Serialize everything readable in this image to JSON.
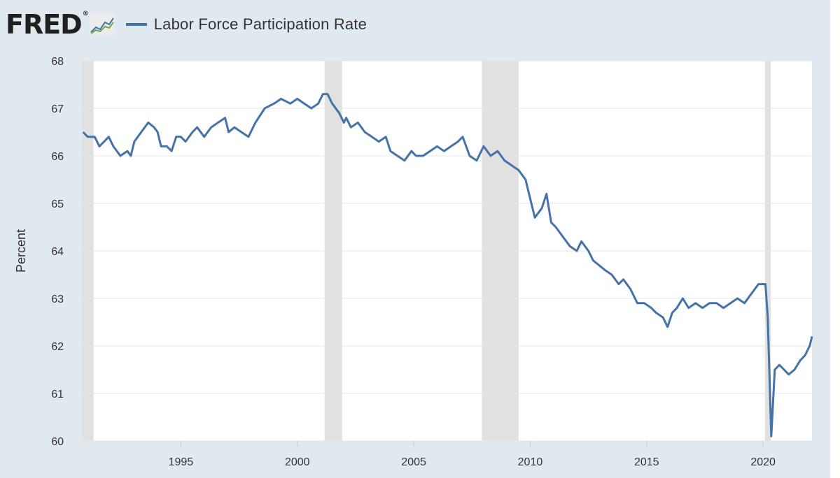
{
  "header": {
    "logo_text": "FRED",
    "logo_mark": "®",
    "logo_icon": "chart-line-icon"
  },
  "colors": {
    "series": "#4572a7",
    "background": "#e1e9f0",
    "plot": "#ffffff",
    "recession": "#e1e1e1",
    "grid": "#e6e6e6"
  },
  "chart_data": {
    "type": "line",
    "title": "",
    "xlabel": "",
    "ylabel": "Percent",
    "ylim": [
      60,
      68
    ],
    "xlim": [
      1990.75,
      2022.1
    ],
    "grid": true,
    "legend_position": "top-left",
    "yticks": [
      60,
      61,
      62,
      63,
      64,
      65,
      66,
      67,
      68
    ],
    "xticks": [
      1995,
      2000,
      2005,
      2010,
      2015,
      2020
    ],
    "recessions": [
      [
        1990.58,
        1991.25
      ],
      [
        2001.17,
        2001.92
      ],
      [
        2007.92,
        2009.5
      ],
      [
        2020.08,
        2020.33
      ]
    ],
    "series": [
      {
        "name": "Labor Force Participation Rate",
        "points": [
          [
            1990.8,
            66.5
          ],
          [
            1991.0,
            66.4
          ],
          [
            1991.3,
            66.4
          ],
          [
            1991.5,
            66.2
          ],
          [
            1991.9,
            66.4
          ],
          [
            1992.1,
            66.2
          ],
          [
            1992.4,
            66.0
          ],
          [
            1992.7,
            66.1
          ],
          [
            1992.85,
            66.0
          ],
          [
            1993.0,
            66.3
          ],
          [
            1993.3,
            66.5
          ],
          [
            1993.6,
            66.7
          ],
          [
            1993.85,
            66.6
          ],
          [
            1994.0,
            66.5
          ],
          [
            1994.15,
            66.2
          ],
          [
            1994.4,
            66.2
          ],
          [
            1994.6,
            66.1
          ],
          [
            1994.8,
            66.4
          ],
          [
            1995.0,
            66.4
          ],
          [
            1995.2,
            66.3
          ],
          [
            1995.5,
            66.5
          ],
          [
            1995.7,
            66.6
          ],
          [
            1996.0,
            66.4
          ],
          [
            1996.3,
            66.6
          ],
          [
            1996.6,
            66.7
          ],
          [
            1996.9,
            66.8
          ],
          [
            1997.05,
            66.5
          ],
          [
            1997.3,
            66.6
          ],
          [
            1997.6,
            66.5
          ],
          [
            1997.9,
            66.4
          ],
          [
            1998.2,
            66.7
          ],
          [
            1998.6,
            67.0
          ],
          [
            1999.0,
            67.1
          ],
          [
            1999.3,
            67.2
          ],
          [
            1999.7,
            67.1
          ],
          [
            2000.0,
            67.2
          ],
          [
            2000.3,
            67.1
          ],
          [
            2000.6,
            67.0
          ],
          [
            2000.9,
            67.1
          ],
          [
            2001.1,
            67.3
          ],
          [
            2001.3,
            67.3
          ],
          [
            2001.5,
            67.1
          ],
          [
            2001.8,
            66.9
          ],
          [
            2002.0,
            66.7
          ],
          [
            2002.1,
            66.8
          ],
          [
            2002.3,
            66.6
          ],
          [
            2002.6,
            66.7
          ],
          [
            2002.9,
            66.5
          ],
          [
            2003.2,
            66.4
          ],
          [
            2003.5,
            66.3
          ],
          [
            2003.8,
            66.4
          ],
          [
            2004.0,
            66.1
          ],
          [
            2004.3,
            66.0
          ],
          [
            2004.6,
            65.9
          ],
          [
            2004.9,
            66.1
          ],
          [
            2005.1,
            66.0
          ],
          [
            2005.4,
            66.0
          ],
          [
            2005.7,
            66.1
          ],
          [
            2006.0,
            66.2
          ],
          [
            2006.3,
            66.1
          ],
          [
            2006.6,
            66.2
          ],
          [
            2006.9,
            66.3
          ],
          [
            2007.1,
            66.4
          ],
          [
            2007.4,
            66.0
          ],
          [
            2007.7,
            65.9
          ],
          [
            2008.0,
            66.2
          ],
          [
            2008.3,
            66.0
          ],
          [
            2008.6,
            66.1
          ],
          [
            2008.9,
            65.9
          ],
          [
            2009.2,
            65.8
          ],
          [
            2009.5,
            65.7
          ],
          [
            2009.8,
            65.5
          ],
          [
            2010.0,
            65.1
          ],
          [
            2010.2,
            64.7
          ],
          [
            2010.5,
            64.9
          ],
          [
            2010.7,
            65.2
          ],
          [
            2010.9,
            64.6
          ],
          [
            2011.1,
            64.5
          ],
          [
            2011.4,
            64.3
          ],
          [
            2011.7,
            64.1
          ],
          [
            2012.0,
            64.0
          ],
          [
            2012.2,
            64.2
          ],
          [
            2012.5,
            64.0
          ],
          [
            2012.7,
            63.8
          ],
          [
            2012.95,
            63.7
          ],
          [
            2013.2,
            63.6
          ],
          [
            2013.5,
            63.5
          ],
          [
            2013.8,
            63.3
          ],
          [
            2014.0,
            63.4
          ],
          [
            2014.3,
            63.2
          ],
          [
            2014.6,
            62.9
          ],
          [
            2014.9,
            62.9
          ],
          [
            2015.2,
            62.8
          ],
          [
            2015.4,
            62.7
          ],
          [
            2015.7,
            62.6
          ],
          [
            2015.9,
            62.4
          ],
          [
            2016.1,
            62.7
          ],
          [
            2016.3,
            62.8
          ],
          [
            2016.55,
            63.0
          ],
          [
            2016.8,
            62.8
          ],
          [
            2017.1,
            62.9
          ],
          [
            2017.4,
            62.8
          ],
          [
            2017.7,
            62.9
          ],
          [
            2018.0,
            62.9
          ],
          [
            2018.3,
            62.8
          ],
          [
            2018.6,
            62.9
          ],
          [
            2018.9,
            63.0
          ],
          [
            2019.2,
            62.9
          ],
          [
            2019.5,
            63.1
          ],
          [
            2019.8,
            63.3
          ],
          [
            2020.0,
            63.3
          ],
          [
            2020.1,
            63.3
          ],
          [
            2020.2,
            62.6
          ],
          [
            2020.35,
            60.1
          ],
          [
            2020.5,
            61.5
          ],
          [
            2020.7,
            61.6
          ],
          [
            2020.9,
            61.5
          ],
          [
            2021.1,
            61.4
          ],
          [
            2021.35,
            61.5
          ],
          [
            2021.6,
            61.7
          ],
          [
            2021.8,
            61.8
          ],
          [
            2022.0,
            62.0
          ],
          [
            2022.1,
            62.2
          ]
        ]
      }
    ]
  }
}
